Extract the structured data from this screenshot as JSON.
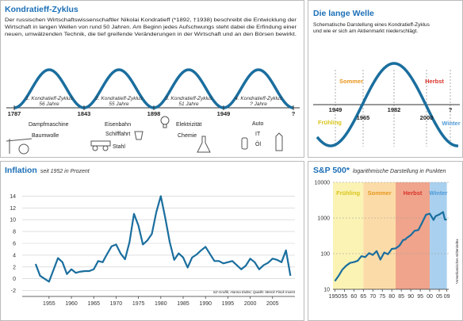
{
  "kondratieff": {
    "title": "Kondratieff-Zyklus",
    "text": [
      "Der russischen Wirtschaftswissenschaftler Nikolai Kondratieff (*1892, †1938) beschreibt die Entwicklung der",
      "Wirtschaft in langen Wellen von rund 50 Jahren. Am Beginn jedes Aufschwungs steht dabei die Erfindung einer",
      "neuen, umwälzenden Technik, die tief greifende Veränderungen in der Wirtschaft und an den Börsen bewirkt."
    ],
    "years": [
      "1787",
      "1843",
      "1898",
      "1949",
      "?"
    ],
    "cycles": [
      {
        "name": "1. Kondratieff-Zyklus",
        "duration": "56 Jahre"
      },
      {
        "name": "2. Kondratieff-Zyklus",
        "duration": "55 Jahre"
      },
      {
        "name": "3. Kondratieff-Zyklus",
        "duration": "51 Jahre"
      },
      {
        "name": "4. Kondratieff-Zyklus",
        "duration": "? Jahre"
      }
    ],
    "innovations": [
      [
        "Dampfmaschine",
        "Baumwolle"
      ],
      [
        "Eisenbahn",
        "Schifffahrt",
        "Stahl"
      ],
      [
        "Elektrizität",
        "Chemie"
      ],
      [
        "Auto",
        "IT",
        "Öl"
      ]
    ]
  },
  "welle": {
    "title": "Die lange Welle",
    "text": [
      "Schematische Darstellung eines Kondratieff-Zyklus",
      "und wie er sich am Aktienmarkt niederschlägt."
    ],
    "seasons": [
      {
        "name": "Frühling",
        "color": "#d9c51c"
      },
      {
        "name": "Sommer",
        "color": "#e8961c"
      },
      {
        "name": "Herbst",
        "color": "#d8322a"
      },
      {
        "name": "Winter",
        "color": "#4f9ad6"
      }
    ],
    "years": [
      "1949",
      "1965",
      "1982",
      "2000",
      "?"
    ]
  },
  "chart_data": [
    {
      "type": "line",
      "title": "Inflation",
      "subtitle": "seit 1952 in Prozent",
      "source": "SZ-Grafik; Hanna Eiden; Quelle: Merck Finck Invest",
      "color": "#1a6e9e",
      "x": [
        1952,
        1953,
        1954,
        1955,
        1956,
        1957,
        1958,
        1959,
        1960,
        1961,
        1962,
        1963,
        1964,
        1965,
        1966,
        1967,
        1968,
        1969,
        1970,
        1971,
        1972,
        1973,
        1974,
        1975,
        1976,
        1977,
        1978,
        1979,
        1980,
        1981,
        1982,
        1983,
        1984,
        1985,
        1986,
        1987,
        1988,
        1989,
        1990,
        1991,
        1992,
        1993,
        1994,
        1995,
        1996,
        1997,
        1998,
        1999,
        2000,
        2001,
        2002,
        2003,
        2004,
        2005,
        2006,
        2007,
        2008,
        2009
      ],
      "values": [
        2.5,
        0.5,
        0,
        -0.5,
        1.5,
        3.5,
        2.8,
        0.8,
        1.6,
        1,
        1.2,
        1.3,
        1.3,
        1.6,
        3,
        2.8,
        4.2,
        5.5,
        5.8,
        4.3,
        3.3,
        6.2,
        11,
        9,
        5.8,
        6.5,
        7.6,
        11.3,
        14,
        10.3,
        6.2,
        3.2,
        4.3,
        3.6,
        1.9,
        3.6,
        4.1,
        4.8,
        5.4,
        4.2,
        3,
        3,
        2.6,
        2.8,
        3,
        2.3,
        1.6,
        2.2,
        3.4,
        2.8,
        1.6,
        2.3,
        2.7,
        3.4,
        3.2,
        2.8,
        4.8,
        0.5
      ],
      "xlim": [
        1949,
        2010
      ],
      "ylim": [
        -3,
        15
      ],
      "xticks": [
        1955,
        1960,
        1965,
        1970,
        1975,
        1980,
        1985,
        1990,
        1995,
        2000,
        2005
      ],
      "yticks": [
        -2,
        0,
        2,
        4,
        6,
        8,
        10,
        12,
        14
      ],
      "grid": true
    },
    {
      "type": "line",
      "title": "S&P 500*",
      "subtitle": "logarithmische Darstellung in Punkten",
      "footnote": "*Amerikanischer Aktienindex",
      "color": "#1a6e9e",
      "log": true,
      "x": [
        1950,
        1952,
        1954,
        1956,
        1958,
        1960,
        1962,
        1964,
        1966,
        1968,
        1970,
        1972,
        1974,
        1976,
        1978,
        1980,
        1982,
        1984,
        1986,
        1987,
        1988,
        1990,
        1992,
        1994,
        1996,
        1998,
        2000,
        2002,
        2003,
        2005,
        2007,
        2008,
        2009
      ],
      "values": [
        17,
        24,
        36,
        46,
        55,
        58,
        63,
        85,
        80,
        103,
        92,
        118,
        68,
        107,
        96,
        136,
        140,
        167,
        242,
        247,
        278,
        330,
        436,
        459,
        740,
        1229,
        1320,
        880,
        1112,
        1248,
        1468,
        903,
        900
      ],
      "xlim": [
        1949,
        2010
      ],
      "ylim": [
        10,
        10000
      ],
      "yticks": [
        10,
        100,
        1000,
        10000
      ],
      "xticks": [
        1950,
        {
          "value": 1955,
          "label": "55"
        },
        {
          "value": 1960,
          "label": "60"
        },
        {
          "value": 1965,
          "label": "65"
        },
        {
          "value": 1970,
          "label": "70"
        },
        {
          "value": 1975,
          "label": "75"
        },
        {
          "value": 1980,
          "label": "80"
        },
        {
          "value": 1985,
          "label": "85"
        },
        {
          "value": 1990,
          "label": "90"
        },
        {
          "value": 1995,
          "label": "95"
        },
        {
          "value": 2000,
          "label": "00"
        },
        {
          "value": 2005,
          "label": "05"
        },
        {
          "value": 2009,
          "label": "09"
        }
      ],
      "bands": [
        {
          "name": "Frühling",
          "start": 1949,
          "end": 1965,
          "color": "#fbf3b4"
        },
        {
          "name": "Sommer",
          "start": 1965,
          "end": 1982,
          "color": "#fbdca8"
        },
        {
          "name": "Herbst",
          "start": 1982,
          "end": 2000,
          "color": "#f0a48c"
        },
        {
          "name": "Winter",
          "start": 2000,
          "end": 2009,
          "color": "#a9d0ee"
        }
      ],
      "band_label_colors": [
        "#d9c51c",
        "#e8961c",
        "#d8322a",
        "#4f9ad6"
      ],
      "grid": true
    }
  ]
}
